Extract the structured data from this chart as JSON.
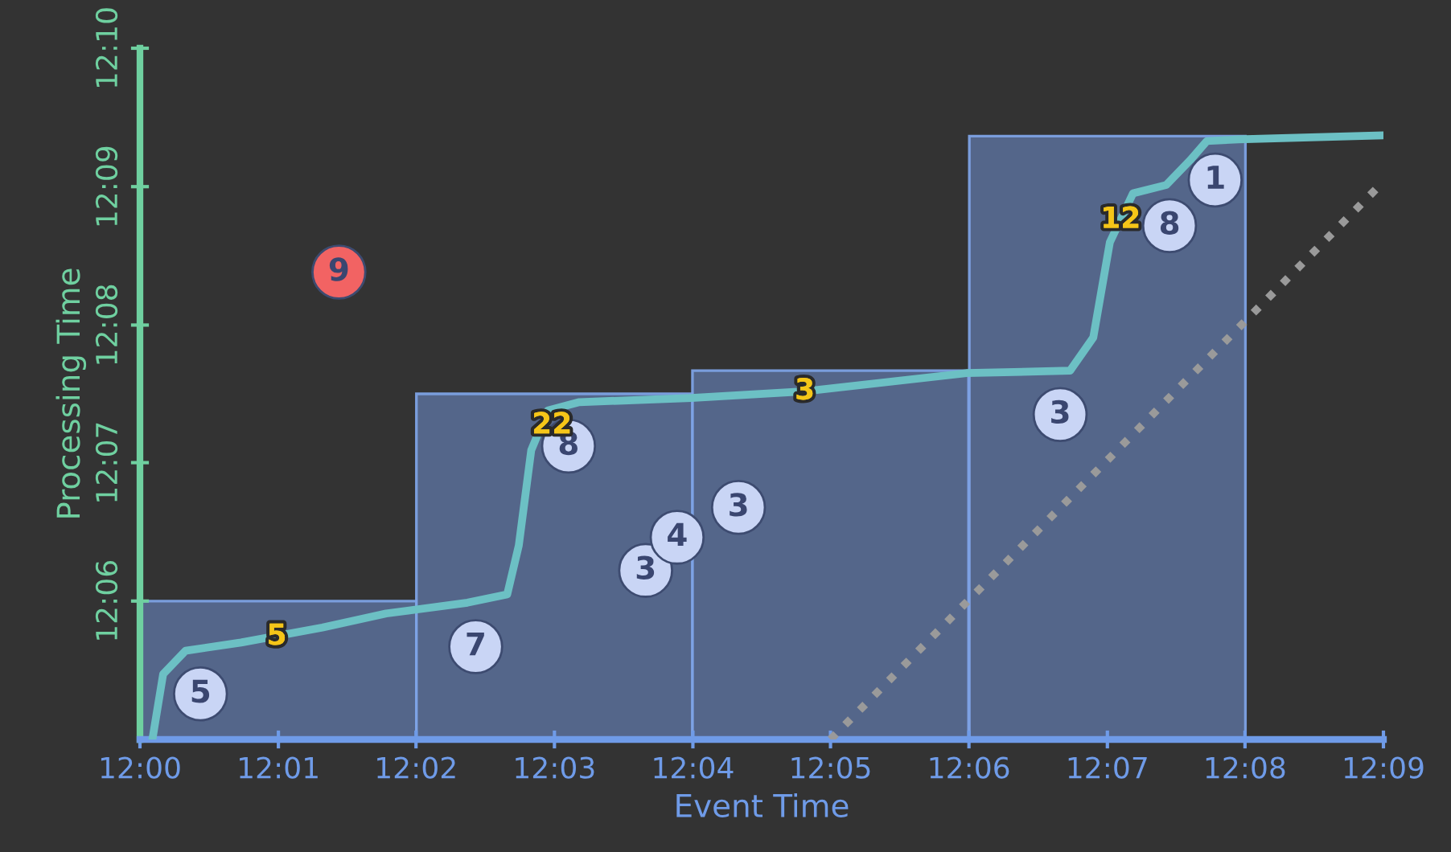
{
  "chart_data": {
    "type": "scatter",
    "xlabel": "Event Time",
    "ylabel": "Processing Time",
    "xlim": [
      12,
      12.15
    ],
    "ylim": [
      12.0833,
      12.1667
    ],
    "xticks": [
      {
        "value": 12,
        "label": "12:00"
      },
      {
        "value": 12.0167,
        "label": "12:01"
      },
      {
        "value": 12.0333,
        "label": "12:02"
      },
      {
        "value": 12.05,
        "label": "12:03"
      },
      {
        "value": 12.0667,
        "label": "12:04"
      },
      {
        "value": 12.0833,
        "label": "12:05"
      },
      {
        "value": 12.1,
        "label": "12:06"
      },
      {
        "value": 12.1167,
        "label": "12:07"
      },
      {
        "value": 12.1333,
        "label": "12:08"
      },
      {
        "value": 12.15,
        "label": "12:09"
      }
    ],
    "yticks": [
      {
        "value": 12.1,
        "label": "12:06"
      },
      {
        "value": 12.1167,
        "label": "12:07"
      },
      {
        "value": 12.1333,
        "label": "12:08"
      },
      {
        "value": 12.15,
        "label": "12:09"
      },
      {
        "value": 12.1667,
        "label": "12:10"
      }
    ],
    "grid": false,
    "legend": false,
    "series": [
      {
        "type": "bar",
        "color": "#56698f",
        "x": [
          12.0167,
          12.05,
          12.0833,
          12.1167
        ],
        "base": [
          12.0833,
          12.0833,
          12.0833,
          12.0833
        ],
        "values": [
          0.0167,
          0.0417,
          0.0445,
          0.0728
        ]
      },
      {
        "type": "line",
        "line_style": "dotted",
        "color": "#9a9a9a",
        "x": [
          12.0833,
          12.1497
        ],
        "values": [
          12.0833,
          12.1503
        ]
      },
      {
        "type": "line",
        "line_style": "solid",
        "color": "#6cc0c4",
        "x": [
          12.0015,
          12.0028,
          12.0055,
          12.0122,
          12.022,
          12.0297,
          12.0395,
          12.0443,
          12.0457,
          12.0472,
          12.0492,
          12.053,
          12.0665,
          12.0802,
          12.0997,
          12.1122,
          12.115,
          12.117,
          12.1198,
          12.1238,
          12.1267,
          12.1287,
          12.1325,
          12.15
        ],
        "values": [
          12.0833,
          12.0912,
          12.094,
          12.095,
          12.0968,
          12.0985,
          12.0998,
          12.1008,
          12.1067,
          12.1182,
          12.123,
          12.124,
          12.1245,
          12.1253,
          12.1275,
          12.1278,
          12.1318,
          12.1433,
          12.1492,
          12.1502,
          12.1532,
          12.1555,
          12.1557,
          12.1562
        ]
      },
      {
        "color": "#c9d5f5",
        "x": [
          12.0073,
          12.0405,
          12.0517,
          12.061,
          12.0648,
          12.0722,
          12.111,
          12.1242,
          12.1297
        ],
        "values": [
          12.0888,
          12.0945,
          12.1187,
          12.1037,
          12.1077,
          12.1113,
          12.1225,
          12.1453,
          12.1508
        ]
      },
      {
        "color": "#f26363",
        "x": [
          12.024
        ],
        "values": [
          12.1397
        ]
      }
    ],
    "annotations": [
      {
        "text": "5",
        "x": 12.0073,
        "y": 12.0888
      },
      {
        "text": "7",
        "x": 12.0405,
        "y": 12.0945
      },
      {
        "text": "8",
        "x": 12.0517,
        "y": 12.1187
      },
      {
        "text": "3",
        "x": 12.061,
        "y": 12.1037
      },
      {
        "text": "4",
        "x": 12.0648,
        "y": 12.1077
      },
      {
        "text": "3",
        "x": 12.0722,
        "y": 12.1113
      },
      {
        "text": "3",
        "x": 12.111,
        "y": 12.1225
      },
      {
        "text": "8",
        "x": 12.1242,
        "y": 12.1453
      },
      {
        "text": "1",
        "x": 12.1297,
        "y": 12.1508
      },
      {
        "text": "9",
        "x": 12.024,
        "y": 12.1397
      },
      {
        "text": "5",
        "x": 12.0165,
        "y": 12.0957
      },
      {
        "text": "22",
        "x": 12.0497,
        "y": 12.1212
      },
      {
        "text": "3",
        "x": 12.0802,
        "y": 12.1253
      },
      {
        "text": "12",
        "x": 12.1183,
        "y": 12.146
      }
    ]
  }
}
